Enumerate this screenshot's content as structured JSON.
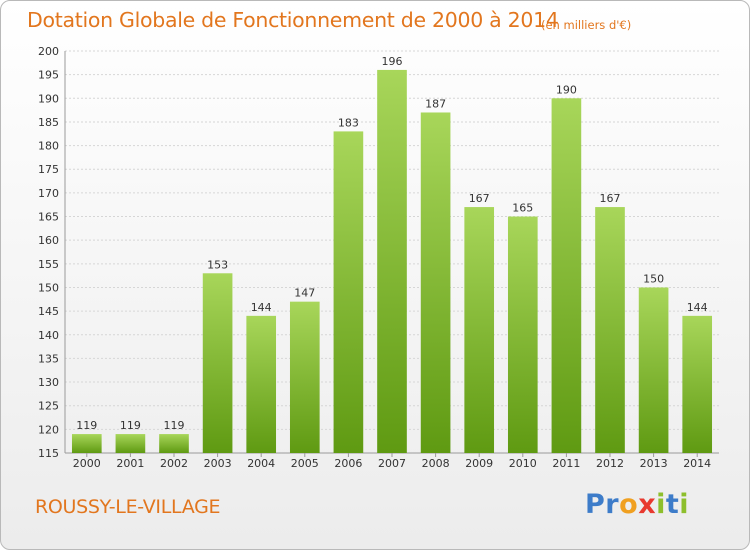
{
  "title": "Dotation Globale de Fonctionnement de 2000 à 2014",
  "unit": "(en milliers d'€)",
  "commune": "ROUSSY-LE-VILLAGE",
  "logo": {
    "letters": [
      "P",
      "r",
      "o",
      "x",
      "i",
      "t",
      "i"
    ],
    "colors": [
      "#3d7cc9",
      "#3d7cc9",
      "#f0a020",
      "#e8392f",
      "#8dbf2c",
      "#3d7cc9",
      "#8dbf2c"
    ]
  },
  "colors": {
    "bar_top": "#a8d65a",
    "bar_bottom": "#5f9a12",
    "text_accent": "#e2761e"
  },
  "chart_data": {
    "type": "bar",
    "categories": [
      "2000",
      "2001",
      "2002",
      "2003",
      "2004",
      "2005",
      "2006",
      "2007",
      "2008",
      "2009",
      "2010",
      "2011",
      "2012",
      "2013",
      "2014"
    ],
    "values": [
      119,
      119,
      119,
      153,
      144,
      147,
      183,
      196,
      187,
      167,
      165,
      190,
      167,
      150,
      144
    ],
    "ylim": [
      115,
      200
    ],
    "ytick_step": 5,
    "grid": true
  }
}
